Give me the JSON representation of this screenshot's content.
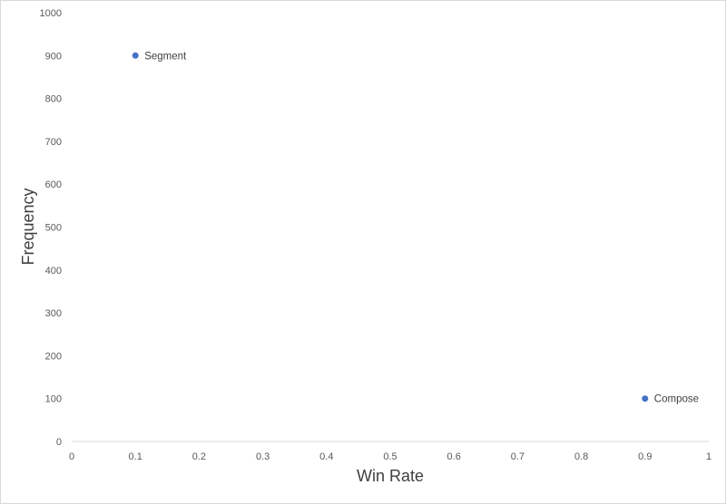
{
  "chart_data": {
    "type": "scatter",
    "title": "",
    "xlabel": "Win Rate",
    "ylabel": "Frequency",
    "xlim": [
      0,
      1
    ],
    "ylim": [
      0,
      1000
    ],
    "x_ticks": [
      "0",
      "0.1",
      "0.2",
      "0.3",
      "0.4",
      "0.5",
      "0.6",
      "0.7",
      "0.8",
      "0.9",
      "1"
    ],
    "y_ticks": [
      "0",
      "100",
      "200",
      "300",
      "400",
      "500",
      "600",
      "700",
      "800",
      "900",
      "1000"
    ],
    "grid": false,
    "legend": "none",
    "series": [
      {
        "color": "#4472c4",
        "points": [
          {
            "x": 0.1,
            "y": 900,
            "label": "Segment"
          },
          {
            "x": 0.9,
            "y": 100,
            "label": "Compose"
          }
        ]
      }
    ],
    "colors": {
      "axis": "#d9d9d9",
      "tick_text": "#595959",
      "title_text": "#404040",
      "marker": "#4472c4"
    }
  }
}
